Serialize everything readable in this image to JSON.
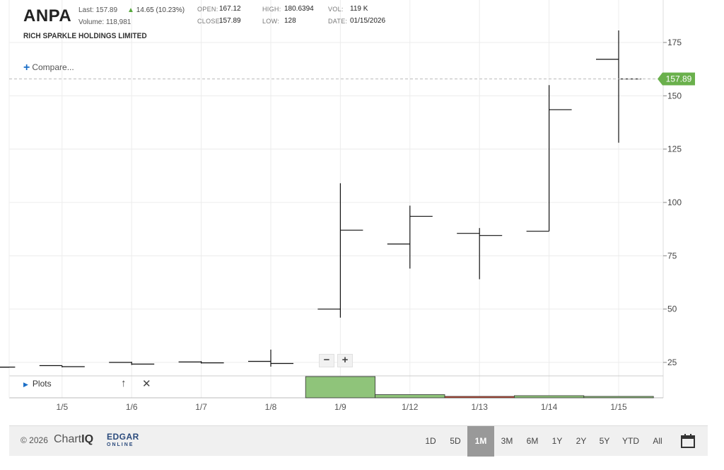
{
  "header": {
    "symbol": "ANPA",
    "last_label": "Last:",
    "last_value": "157.89",
    "change": "14.65 (10.23%)",
    "volume_label": "Volume:",
    "volume_value": "118,981",
    "company": "RICH SPARKLE HOLDINGS LIMITED",
    "open_label": "OPEN:",
    "open_value": "167.12",
    "close_label": "CLOSE:",
    "close_value": "157.89",
    "high_label": "HIGH:",
    "high_value": "180.6394",
    "low_label": "LOW:",
    "low_value": "128",
    "vol_label": "VOL:",
    "vol_value": "119 K",
    "date_label": "DATE:",
    "date_value": "01/15/2026",
    "compare_label": "Compare..."
  },
  "plots": {
    "label": "Plots"
  },
  "footer": {
    "copyright": "© 2026",
    "chartiq": "Chart",
    "chartiq_bold": "IQ",
    "edgar": "EDGAR",
    "edgar_online": "ONLINE",
    "ranges": [
      "1D",
      "5D",
      "1M",
      "3M",
      "6M",
      "1Y",
      "2Y",
      "5Y",
      "YTD",
      "All"
    ],
    "active_range": "1M"
  },
  "colors": {
    "up": "#8fc47a",
    "down": "#d14b33",
    "last_price_tag": "#6ab04c"
  },
  "chart_data": {
    "type": "ohlc",
    "price_ticks": [
      25,
      50,
      75,
      100,
      125,
      150,
      175
    ],
    "last_price_label": "157.89",
    "last_price": 157.89,
    "ylim": [
      8,
      195
    ],
    "x_labels": [
      "1/5",
      "1/6",
      "1/7",
      "1/8",
      "1/9",
      "1/12",
      "1/13",
      "1/14",
      "1/15"
    ],
    "bars": [
      {
        "date": "1/2",
        "open": 22.8,
        "high": 23.0,
        "low": 22.5,
        "close": 22.8
      },
      {
        "date": "1/5",
        "open": 23.5,
        "high": 23.5,
        "low": 22.7,
        "close": 23.0
      },
      {
        "date": "1/6",
        "open": 25.0,
        "high": 25.3,
        "low": 23.8,
        "close": 24.2
      },
      {
        "date": "1/7",
        "open": 25.2,
        "high": 25.6,
        "low": 24.5,
        "close": 24.8
      },
      {
        "date": "1/8",
        "open": 25.5,
        "high": 31.0,
        "low": 23.0,
        "close": 24.5
      },
      {
        "date": "1/9",
        "open": 50.0,
        "high": 109.0,
        "low": 46.0,
        "close": 87.0
      },
      {
        "date": "1/12",
        "open": 80.5,
        "high": 98.5,
        "low": 69.0,
        "close": 93.5
      },
      {
        "date": "1/13",
        "open": 85.5,
        "high": 88.0,
        "low": 64.0,
        "close": 84.5
      },
      {
        "date": "1/14",
        "open": 86.5,
        "high": 155.0,
        "low": 86.5,
        "close": 143.5
      },
      {
        "date": "1/15",
        "open": 167.12,
        "high": 180.6394,
        "low": 128.0,
        "close": 157.89
      }
    ],
    "volume": [
      {
        "date": "1/9",
        "volume": 100,
        "direction": "up"
      },
      {
        "date": "1/12",
        "volume": 15,
        "direction": "up"
      },
      {
        "date": "1/13",
        "volume": 6,
        "direction": "down"
      },
      {
        "date": "1/14",
        "volume": 10,
        "direction": "up"
      },
      {
        "date": "1/15",
        "volume": 5,
        "direction": "up"
      }
    ],
    "grid": true
  }
}
